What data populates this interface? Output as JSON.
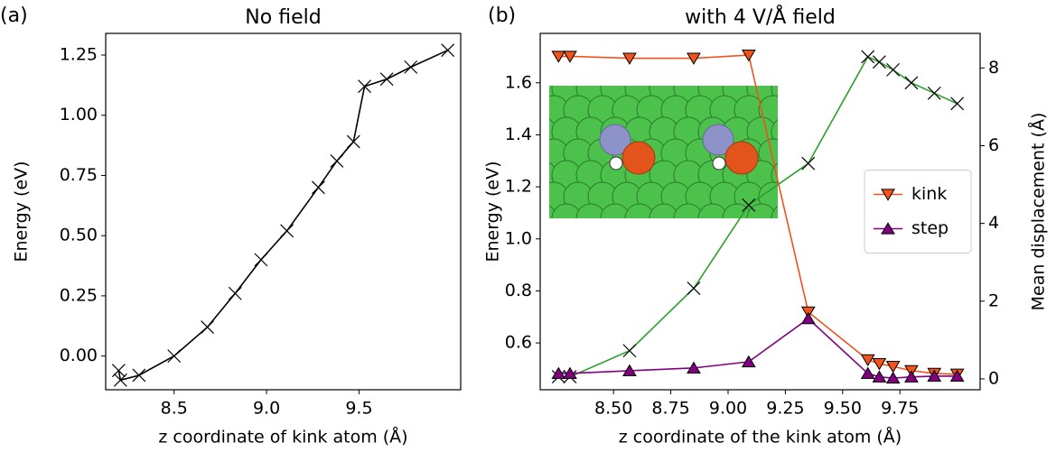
{
  "chart_data": [
    {
      "type": "line",
      "panel_label": "(a)",
      "title": "No field",
      "xlabel": "z coordinate of kink atom (Å)",
      "ylabel": "Energy (eV)",
      "x": [
        8.2,
        8.21,
        8.31,
        8.5,
        8.68,
        8.83,
        8.97,
        9.11,
        9.28,
        9.38,
        9.47,
        9.53,
        9.65,
        9.78,
        9.98
      ],
      "series": [
        {
          "color": "#000000",
          "marker": "x",
          "marker_color": "#000000",
          "values": [
            -0.06,
            -0.1,
            -0.08,
            0.0,
            0.12,
            0.26,
            0.4,
            0.52,
            0.7,
            0.81,
            0.89,
            1.12,
            1.15,
            1.2,
            1.27
          ]
        }
      ],
      "xlim": [
        8.13,
        10.05
      ],
      "xticks": [
        8.5,
        {
          "value": 9,
          "label": "9.0"
        },
        9.5
      ],
      "ylim": [
        -0.14,
        1.34
      ],
      "yticks": [
        {
          "value": 0,
          "label": "0.00"
        },
        0.25,
        {
          "value": 0.5,
          "label": "0.50"
        },
        0.75,
        {
          "value": 1,
          "label": "1.00"
        },
        1.25
      ]
    },
    {
      "type": "line",
      "panel_label": "(b)",
      "title": "with 4 V/Å field",
      "xlabel": "z coordinate of the kink atom (Å)",
      "ylabel": "Energy (eV)",
      "ylabel_color": "#1a8a1a",
      "y2label": "Mean displacement (Å)",
      "y2label_color": "#e8231b",
      "x": [
        8.26,
        8.31,
        8.57,
        8.85,
        9.09,
        9.35,
        9.61,
        9.66,
        9.72,
        9.8,
        9.9,
        10.0
      ],
      "series": [
        {
          "color": "#2ca02c",
          "marker": "x",
          "marker_color": "#000000",
          "values": [
            0.47,
            0.47,
            0.57,
            0.81,
            1.13,
            1.29,
            1.7,
            1.68,
            1.65,
            1.6,
            1.56,
            1.52
          ]
        },
        {
          "name": "kink",
          "axis": "y2",
          "color": "#f0531c",
          "marker": "v",
          "marker_color": "#f0531c",
          "values": [
            8.3,
            8.3,
            8.25,
            8.25,
            8.33,
            1.72,
            0.49,
            0.39,
            0.32,
            0.21,
            0.14,
            0.12
          ]
        },
        {
          "name": "step",
          "axis": "y2",
          "color": "#800080",
          "marker": "^",
          "marker_color": "#800080",
          "values": [
            0.14,
            0.14,
            0.21,
            0.28,
            0.44,
            1.55,
            0.14,
            0.05,
            0.02,
            0.05,
            0.07,
            0.07
          ]
        }
      ],
      "legend": "center right",
      "xlim": [
        8.18,
        10.1
      ],
      "xticks": [
        {
          "value": 8.5,
          "label": "8.50"
        },
        8.75,
        {
          "value": 9,
          "label": "9.00"
        },
        9.25,
        {
          "value": 9.5,
          "label": "9.50"
        },
        9.75
      ],
      "ylim": [
        0.42,
        1.79
      ],
      "yticks": [
        0.6,
        0.8,
        {
          "value": 1,
          "label": "1.0"
        },
        1.2,
        1.4,
        1.6
      ],
      "y2lim": [
        -0.28,
        8.89
      ],
      "y2ticks": [
        0,
        2,
        4,
        6,
        8
      ]
    }
  ]
}
